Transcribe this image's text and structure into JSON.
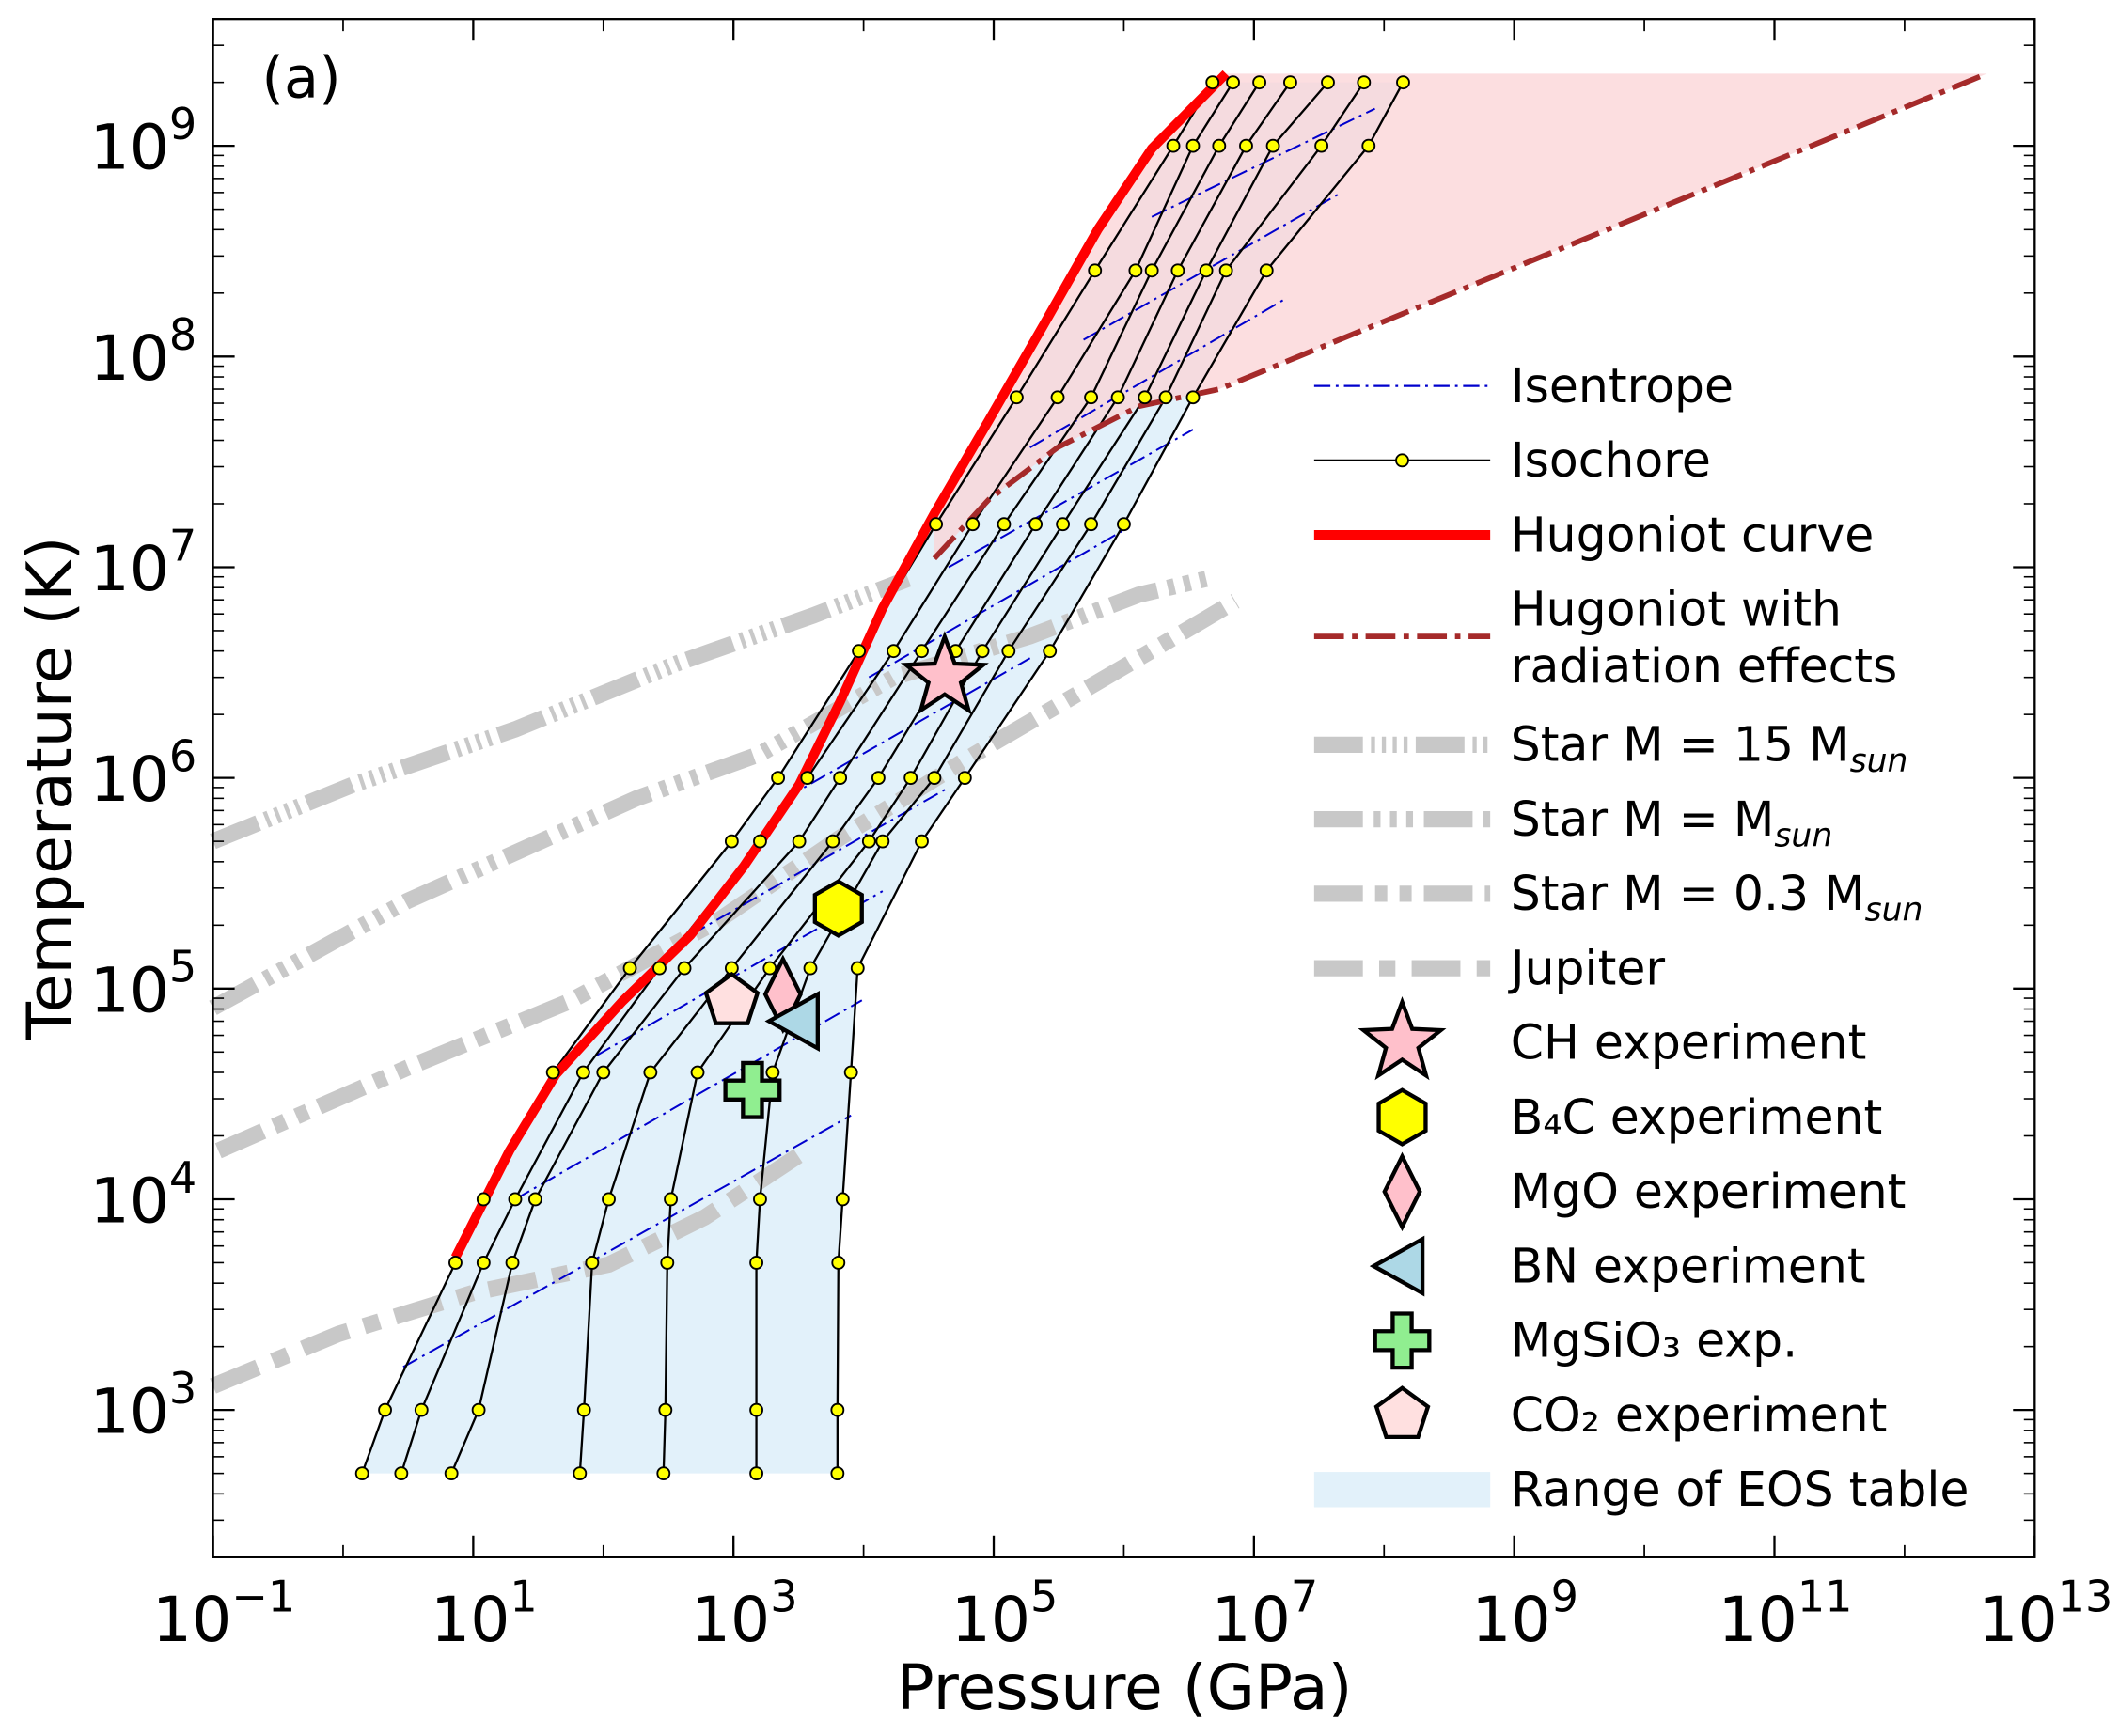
{
  "chart_data": {
    "type": "line",
    "panel_label": "(a)",
    "x_label": "Pressure (GPa)",
    "y_label": "Temperature (K)",
    "xscale": "log",
    "yscale": "log",
    "xlim": [
      0.1,
      10000000000000
    ],
    "ylim": [
      200,
      4000000000
    ],
    "xticks": [
      {
        "value": 0.1,
        "label": "10",
        "exponent": "−1"
      },
      {
        "value": 10,
        "label": "10",
        "exponent": "1"
      },
      {
        "value": 1000,
        "label": "10",
        "exponent": "3"
      },
      {
        "value": 100000,
        "label": "10",
        "exponent": "5"
      },
      {
        "value": 10000000,
        "label": "10",
        "exponent": "7"
      },
      {
        "value": 1000000000,
        "label": "10",
        "exponent": "9"
      },
      {
        "value": 100000000000,
        "label": "10",
        "exponent": "11"
      },
      {
        "value": 10000000000000,
        "label": "10",
        "exponent": "13"
      }
    ],
    "yticks": [
      {
        "value": 1000,
        "label": "10",
        "exponent": "3"
      },
      {
        "value": 10000,
        "label": "10",
        "exponent": "4"
      },
      {
        "value": 100000,
        "label": "10",
        "exponent": "5"
      },
      {
        "value": 1000000,
        "label": "10",
        "exponent": "6"
      },
      {
        "value": 10000000,
        "label": "10",
        "exponent": "7"
      },
      {
        "value": 100000000,
        "label": "10",
        "exponent": "8"
      },
      {
        "value": 1000000000,
        "label": "10",
        "exponent": "9"
      }
    ],
    "series": [
      {
        "name": "Isentrope",
        "kind": "isentrope",
        "color": "#0000cd",
        "lines": [
          {
            "x": [
              2.9,
              8000
            ],
            "values": [
              1600,
              25000
            ]
          },
          {
            "x": [
              21,
              9700
            ],
            "values": [
              10000,
              88000
            ]
          },
          {
            "x": [
              88,
              14000
            ],
            "values": [
              48000,
              290000
            ]
          },
          {
            "x": [
              470,
              45000
            ],
            "values": [
              180000,
              900000
            ]
          },
          {
            "x": [
              2500,
              190000
            ],
            "values": [
              800000,
              3700000
            ]
          },
          {
            "x": [
              11000,
              1000000
            ],
            "values": [
              3000000,
              15000000
            ]
          },
          {
            "x": [
              45000,
              3400000
            ],
            "values": [
              10000000,
              45000000
            ]
          },
          {
            "x": [
              190000,
              18000000
            ],
            "values": [
              37000000,
              190000000
            ]
          },
          {
            "x": [
              490000,
              47000000
            ],
            "values": [
              120000000,
              600000000
            ]
          },
          {
            "x": [
              1640000,
              85000000
            ],
            "values": [
              460000000,
              1500000000
            ]
          }
        ]
      },
      {
        "name": "Isochore",
        "kind": "isochore",
        "color": "#000000",
        "marker_color": "#ffff00",
        "lines": [
          {
            "x": [
              1.4,
              2.1,
              7.3,
              12,
              41,
              160,
              970,
              2200,
              9200,
              36000,
              150000,
              600000,
              2400000,
              4800000
            ],
            "values": [
              500,
              1000,
              5000,
              10000,
              40000,
              125000,
              500000,
              1000000,
              4000000,
              16000000,
              64000000,
              256000000,
              1000000000,
              2000000000
            ]
          },
          {
            "x": [
              2.8,
              4.0,
              12,
              21,
              70,
              270,
              1600,
              3700,
              17000,
              69000,
              310000,
              1230000,
              3400000,
              6900000
            ],
            "values": [
              500,
              1000,
              5000,
              10000,
              40000,
              125000,
              500000,
              1000000,
              4000000,
              16000000,
              64000000,
              256000000,
              1000000000,
              2000000000
            ]
          },
          {
            "x": [
              6.8,
              11,
              20,
              30,
              100,
              420,
              3200,
              6600,
              28000,
              120000,
              560000,
              1640000,
              5400000,
              11000000
            ],
            "values": [
              500,
              1000,
              5000,
              10000,
              40000,
              125000,
              500000,
              1000000,
              4000000,
              16000000,
              64000000,
              256000000,
              1000000000,
              2000000000
            ]
          },
          {
            "x": [
              66,
              71,
              82,
              110,
              230,
              970,
              5800,
              13000,
              51000,
              210000,
              900000,
              2600000,
              8700000,
              19000000
            ],
            "values": [
              500,
              1000,
              5000,
              10000,
              40000,
              125000,
              500000,
              1000000,
              4000000,
              16000000,
              64000000,
              256000000,
              1000000000,
              2000000000
            ]
          },
          {
            "x": [
              290,
              300,
              310,
              330,
              530,
              1900,
              11000,
              23000,
              82000,
              340000,
              1450000,
              4300000,
              14000000,
              37000000
            ],
            "values": [
              500,
              1000,
              5000,
              10000,
              40000,
              125000,
              500000,
              1000000,
              4000000,
              16000000,
              64000000,
              256000000,
              1000000000,
              2000000000
            ]
          },
          {
            "x": [
              1500,
              1500,
              1500,
              1600,
              2000,
              3900,
              14000,
              35000,
              130000,
              560000,
              2100000,
              6100000,
              33000000,
              70000000
            ],
            "values": [
              500,
              1000,
              5000,
              10000,
              40000,
              125000,
              500000,
              1000000,
              4000000,
              16000000,
              64000000,
              256000000,
              1000000000,
              2000000000
            ]
          },
          {
            "x": [
              6300,
              6300,
              6400,
              6900,
              8000,
              9000,
              28000,
              60000,
              270000,
              1000000,
              3400000,
              12500000,
              76000000,
              140000000
            ],
            "values": [
              500,
              1000,
              5000,
              10000,
              40000,
              125000,
              500000,
              1000000,
              4000000,
              16000000,
              64000000,
              256000000,
              1000000000,
              2000000000
            ]
          }
        ]
      },
      {
        "name": "Hugoniot curve",
        "kind": "hugoniot",
        "color": "#ff0000",
        "x": [
          7.3,
          19,
          43,
          140,
          470,
          1200,
          3200,
          6600,
          14000,
          35000,
          92000,
          240000,
          630000,
          1640000,
          6100000
        ],
        "values": [
          5300,
          17000,
          39000,
          87000,
          180000,
          380000,
          930000,
          2300000,
          6400000,
          18000000,
          50000000,
          140000000,
          400000000,
          970000000,
          2200000000
        ]
      },
      {
        "name": [
          "Hugoniot with",
          "radiation effects"
        ],
        "kind": "radiation",
        "color": "#a52a2a",
        "fill": "#fbd3d6",
        "x": [
          35000,
          92000,
          310000,
          1300000,
          5400000,
          4300000000000
        ],
        "values": [
          11000000,
          21000000,
          37000000,
          58000000,
          70000000,
          2200000000
        ]
      },
      {
        "name": "Star M = 15 M",
        "name_subscript": "sun",
        "kind": "star-model",
        "color": "#c8c8c8",
        "x": [
          0.1,
          1.2,
          21,
          370,
          4100,
          22000
        ],
        "values": [
          500000,
          930000,
          1700000,
          3500000,
          5900000,
          8800000
        ]
      },
      {
        "name": "Star M = M",
        "name_subscript": "sun",
        "kind": "star-model",
        "color": "#c8c8c8",
        "x": [
          0.1,
          3.1,
          180,
          1600,
          17000,
          190000,
          1300000,
          4300000
        ],
        "values": [
          81000,
          260000,
          800000,
          1300000,
          3000000,
          4700000,
          7400000,
          8800000
        ]
      },
      {
        "name": "Star M = 0.3 M",
        "name_subscript": "sun",
        "kind": "star-model",
        "color": "#c8c8c8",
        "x": [
          0.11,
          3.1,
          55,
          760,
          6600,
          72000,
          490000,
          2100000,
          7200000
        ],
        "values": [
          17000,
          42000,
          87000,
          210000,
          520000,
          1300000,
          2600000,
          4400000,
          6900000
        ]
      },
      {
        "name": "Jupiter",
        "kind": "star-model",
        "color": "#c8c8c8",
        "x": [
          0.1,
          0.93,
          10,
          110,
          600,
          3600
        ],
        "values": [
          1300,
          2300,
          3600,
          4900,
          8200,
          17000
        ]
      },
      {
        "name": "CH experiment",
        "kind": "experiment",
        "marker": "star",
        "color": "#ffc0cb",
        "x": [
          42000
        ],
        "values": [
          3000000
        ]
      },
      {
        "name": "B₄C experiment",
        "kind": "experiment",
        "marker": "hexagon",
        "color": "#ffff00",
        "x": [
          6400
        ],
        "values": [
          240000
        ]
      },
      {
        "name": "MgO experiment",
        "kind": "experiment",
        "marker": "diamond",
        "color": "#ffc0cb",
        "x": [
          2400
        ],
        "values": [
          94000
        ]
      },
      {
        "name": "BN experiment",
        "kind": "experiment",
        "marker": "triangle-left",
        "color": "#add8e6",
        "x": [
          3100
        ],
        "values": [
          70000
        ]
      },
      {
        "name": "MgSiO₃ exp.",
        "kind": "experiment",
        "marker": "plus",
        "color": "#90ee90",
        "x": [
          1400
        ],
        "values": [
          33000
        ]
      },
      {
        "name": "CO₂ experiment",
        "kind": "experiment",
        "marker": "pentagon",
        "color": "#ffe0e0",
        "x": [
          970
        ],
        "values": [
          87000
        ]
      },
      {
        "name": "Range of EOS table",
        "kind": "range",
        "color": "#cfe8f6"
      }
    ]
  }
}
